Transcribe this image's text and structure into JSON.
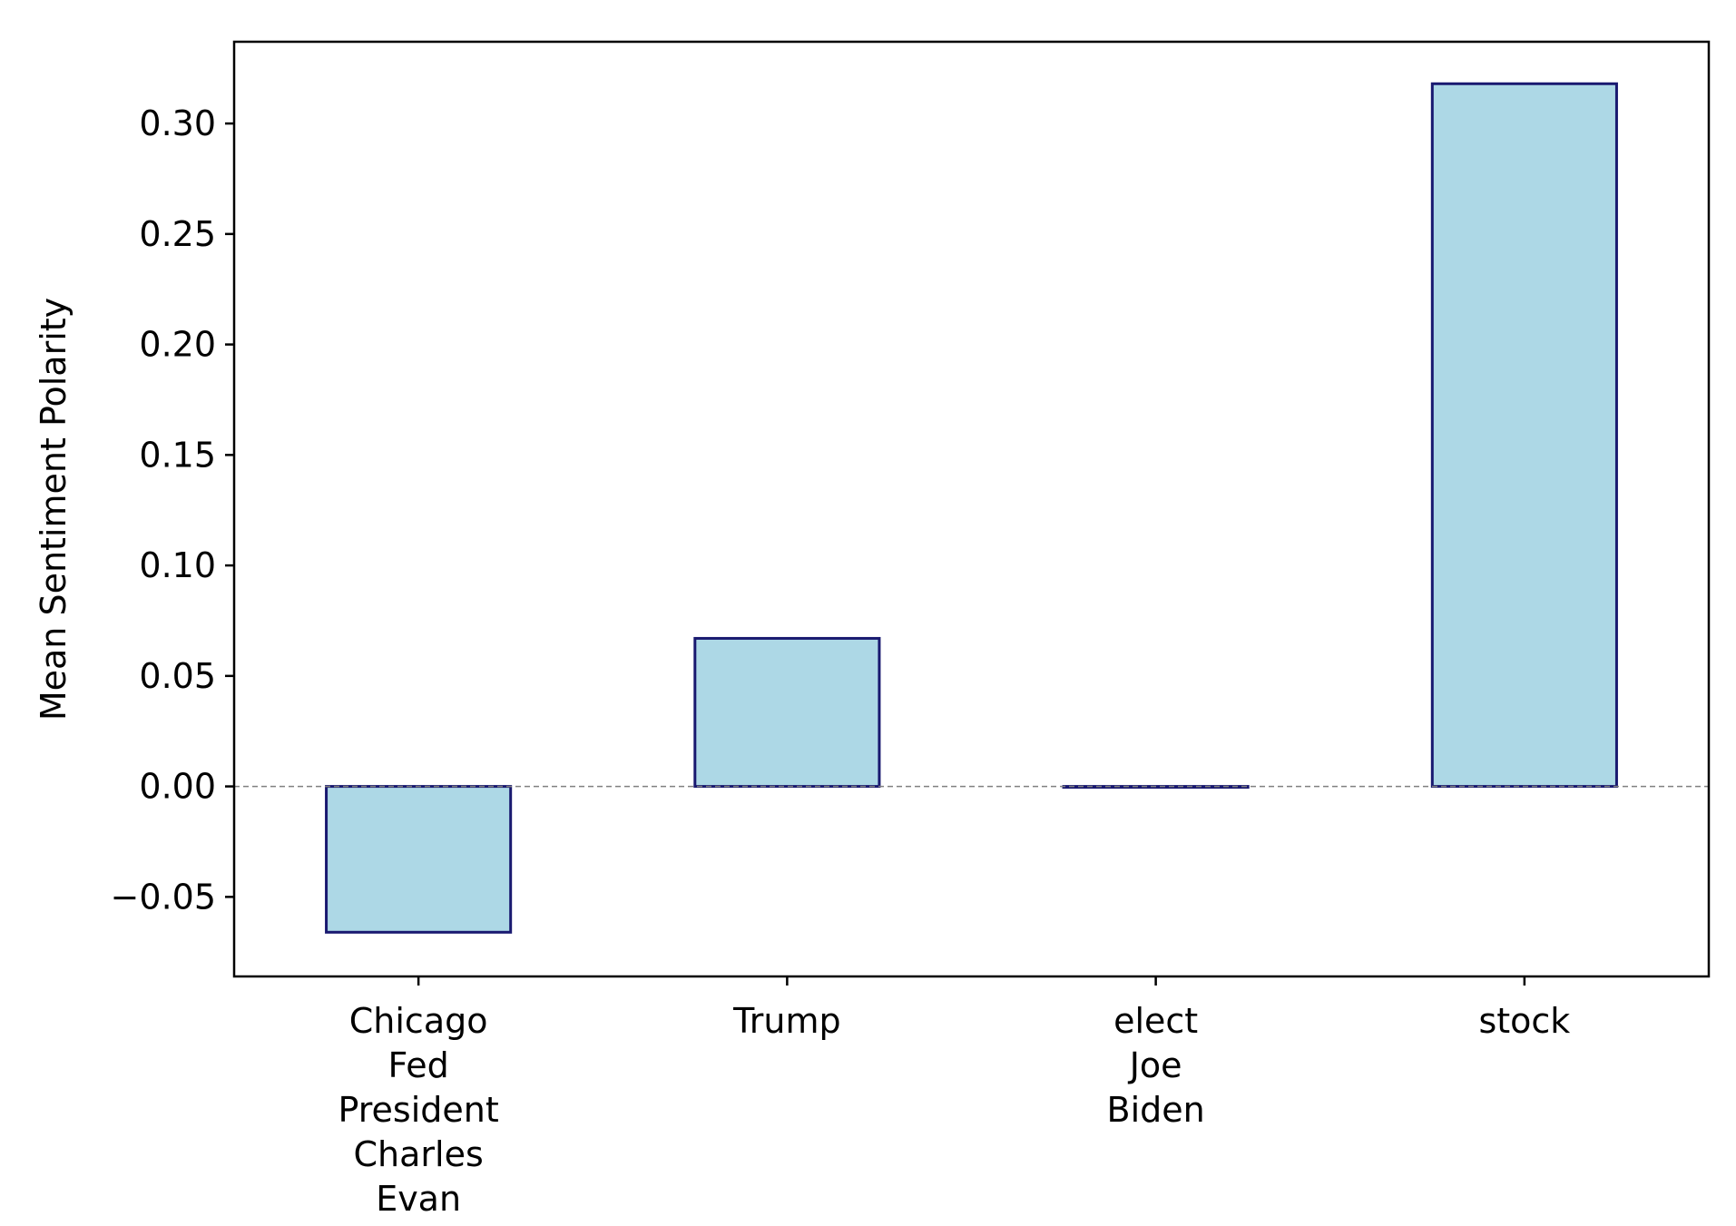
{
  "chart_data": {
    "type": "bar",
    "title": "",
    "xlabel": "",
    "ylabel": "Mean Sentiment Polarity",
    "categories": [
      [
        "Chicago",
        "Fed",
        "President",
        "Charles",
        "Evan"
      ],
      [
        "Trump"
      ],
      [
        "elect",
        "Joe",
        "Biden"
      ],
      [
        "stock"
      ]
    ],
    "values": [
      -0.066,
      0.067,
      0.0,
      0.318
    ],
    "ylim": [
      -0.086,
      0.337
    ],
    "yticks": [
      -0.05,
      0.0,
      0.05,
      0.1,
      0.15,
      0.2,
      0.25,
      0.3
    ],
    "ytick_labels": [
      "−0.05",
      "0.00",
      "0.05",
      "0.10",
      "0.15",
      "0.20",
      "0.25",
      "0.30"
    ],
    "grid": false,
    "legend": "none",
    "reference_line": {
      "y": 0.0,
      "style": "dashed",
      "color": "#808080"
    },
    "colors": {
      "bar_fill": "#add8e6",
      "bar_edge": "#191970",
      "axis": "#000000"
    }
  }
}
